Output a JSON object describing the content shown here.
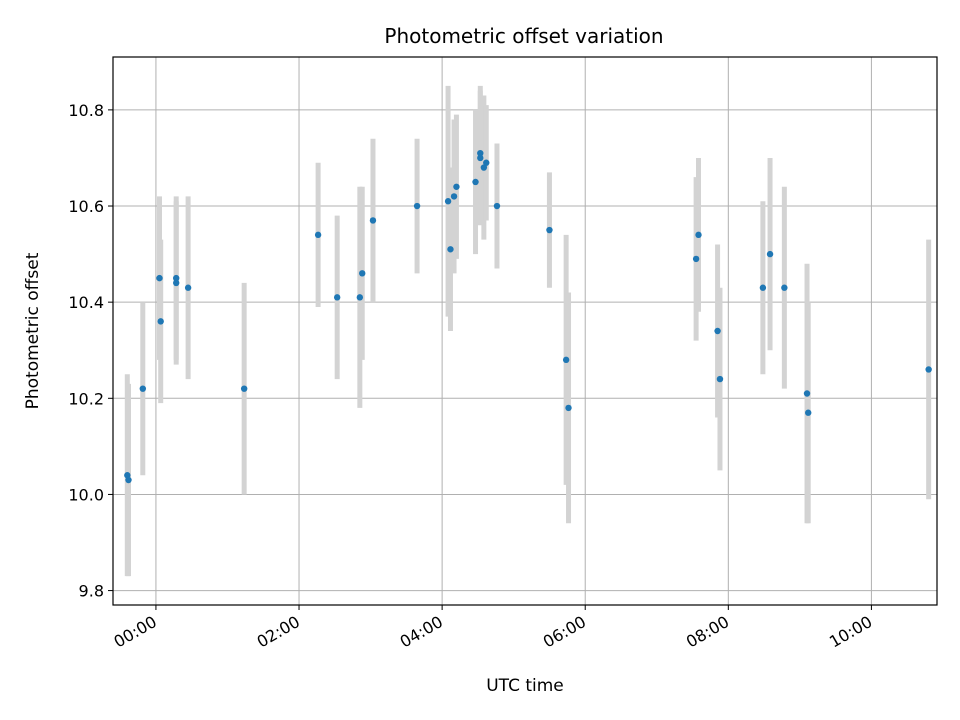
{
  "chart_data": {
    "type": "scatter",
    "title": "Photometric offset variation",
    "xlabel": "UTC time",
    "ylabel": "Photometric offset",
    "xlim": [
      "23:24",
      "10:55"
    ],
    "ylim": [
      9.77,
      10.91
    ],
    "x_ticks": [
      "00:00",
      "02:00",
      "04:00",
      "06:00",
      "08:00",
      "10:00"
    ],
    "y_ticks": [
      9.8,
      10.0,
      10.2,
      10.4,
      10.6,
      10.8
    ],
    "grid": true,
    "marker_color": "#1f77b4",
    "errorbar_color": "#d3d3d3",
    "points": [
      {
        "x": "23:36",
        "y": 10.04,
        "err": 0.21
      },
      {
        "x": "23:37",
        "y": 10.03,
        "err": 0.2
      },
      {
        "x": "23:49",
        "y": 10.22,
        "err": 0.18
      },
      {
        "x": "00:03",
        "y": 10.45,
        "err": 0.17
      },
      {
        "x": "00:04",
        "y": 10.36,
        "err": 0.17
      },
      {
        "x": "00:17",
        "y": 10.44,
        "err": 0.17
      },
      {
        "x": "00:17",
        "y": 10.45,
        "err": 0.17
      },
      {
        "x": "00:27",
        "y": 10.43,
        "err": 0.19
      },
      {
        "x": "01:14",
        "y": 10.22,
        "err": 0.22
      },
      {
        "x": "02:16",
        "y": 10.54,
        "err": 0.15
      },
      {
        "x": "02:32",
        "y": 10.41,
        "err": 0.17
      },
      {
        "x": "02:51",
        "y": 10.41,
        "err": 0.23
      },
      {
        "x": "02:53",
        "y": 10.46,
        "err": 0.18
      },
      {
        "x": "03:02",
        "y": 10.57,
        "err": 0.17
      },
      {
        "x": "03:39",
        "y": 10.6,
        "err": 0.14
      },
      {
        "x": "04:05",
        "y": 10.61,
        "err": 0.24
      },
      {
        "x": "04:07",
        "y": 10.51,
        "err": 0.17
      },
      {
        "x": "04:10",
        "y": 10.62,
        "err": 0.16
      },
      {
        "x": "04:12",
        "y": 10.64,
        "err": 0.15
      },
      {
        "x": "04:28",
        "y": 10.65,
        "err": 0.15
      },
      {
        "x": "04:32",
        "y": 10.71,
        "err": 0.14
      },
      {
        "x": "04:32",
        "y": 10.7,
        "err": 0.14
      },
      {
        "x": "04:35",
        "y": 10.68,
        "err": 0.15
      },
      {
        "x": "04:37",
        "y": 10.69,
        "err": 0.12
      },
      {
        "x": "04:46",
        "y": 10.6,
        "err": 0.13
      },
      {
        "x": "05:30",
        "y": 10.55,
        "err": 0.12
      },
      {
        "x": "05:44",
        "y": 10.28,
        "err": 0.26
      },
      {
        "x": "05:46",
        "y": 10.18,
        "err": 0.24
      },
      {
        "x": "07:33",
        "y": 10.49,
        "err": 0.17
      },
      {
        "x": "07:35",
        "y": 10.54,
        "err": 0.16
      },
      {
        "x": "07:51",
        "y": 10.34,
        "err": 0.18
      },
      {
        "x": "07:53",
        "y": 10.24,
        "err": 0.19
      },
      {
        "x": "08:29",
        "y": 10.43,
        "err": 0.18
      },
      {
        "x": "08:35",
        "y": 10.5,
        "err": 0.2
      },
      {
        "x": "08:47",
        "y": 10.43,
        "err": 0.21
      },
      {
        "x": "09:06",
        "y": 10.21,
        "err": 0.27
      },
      {
        "x": "09:07",
        "y": 10.17,
        "err": 0.23
      },
      {
        "x": "10:48",
        "y": 10.26,
        "err": 0.27
      }
    ]
  }
}
